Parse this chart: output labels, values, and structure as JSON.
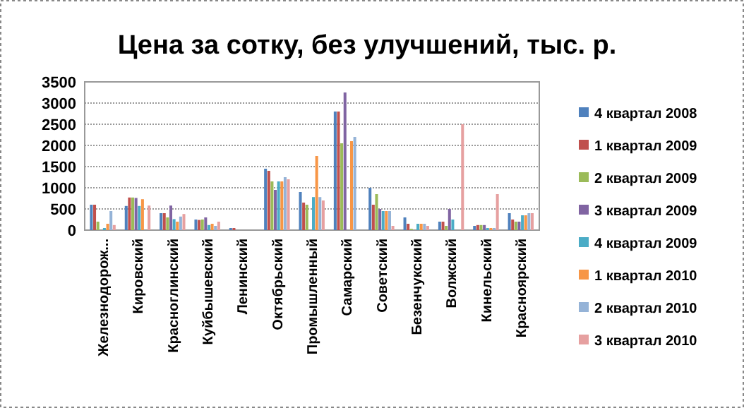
{
  "chart_data": {
    "type": "bar",
    "title": "Цена за сотку, без улучшений,    тыс. р.",
    "categories": [
      "Железнодорож...",
      "Кировский",
      "Красноглинский",
      "Куйбышевский",
      "Ленинский",
      "Октябрьский",
      "Промышленный",
      "Самарский",
      "Советский",
      "Безенчукский",
      "Волжский",
      "Кинельский",
      "Красноярский"
    ],
    "series": [
      {
        "name": "4 квартал 2008",
        "color": "#4f81bd",
        "values": [
          600,
          570,
          400,
          250,
          50,
          1450,
          900,
          2800,
          1000,
          300,
          200,
          100,
          400
        ]
      },
      {
        "name": "1 квартал 2009",
        "color": "#c0504d",
        "values": [
          600,
          770,
          400,
          240,
          50,
          1400,
          650,
          2800,
          600,
          150,
          200,
          120,
          250
        ]
      },
      {
        "name": "2 квартал 2009",
        "color": "#9bbb59",
        "values": [
          200,
          770,
          300,
          250,
          0,
          1150,
          600,
          2050,
          850,
          30,
          100,
          120,
          200
        ]
      },
      {
        "name": "3 квартал 2009",
        "color": "#8064a2",
        "values": [
          0,
          760,
          580,
          300,
          0,
          950,
          0,
          3250,
          500,
          0,
          500,
          120,
          200
        ]
      },
      {
        "name": "4 квартал 2009",
        "color": "#4bacc6",
        "values": [
          50,
          570,
          260,
          120,
          0,
          1150,
          780,
          0,
          450,
          150,
          250,
          50,
          350
        ]
      },
      {
        "name": "1 квартал 2010",
        "color": "#f79646",
        "values": [
          150,
          730,
          200,
          150,
          0,
          1150,
          1750,
          2100,
          450,
          150,
          0,
          50,
          350
        ]
      },
      {
        "name": "2 квартал 2010",
        "color": "#95b3d7",
        "values": [
          450,
          0,
          320,
          100,
          0,
          1250,
          780,
          2200,
          450,
          150,
          0,
          50,
          400
        ]
      },
      {
        "name": "3 квартал 2010",
        "color": "#e6a0a0",
        "values": [
          120,
          580,
          380,
          200,
          0,
          1200,
          700,
          0,
          100,
          100,
          2500,
          850,
          400
        ]
      }
    ],
    "ylim": [
      0,
      3500
    ],
    "yticks": [
      0,
      500,
      1000,
      1500,
      2000,
      2500,
      3000,
      3500
    ],
    "grid": "y",
    "legend": "right"
  }
}
